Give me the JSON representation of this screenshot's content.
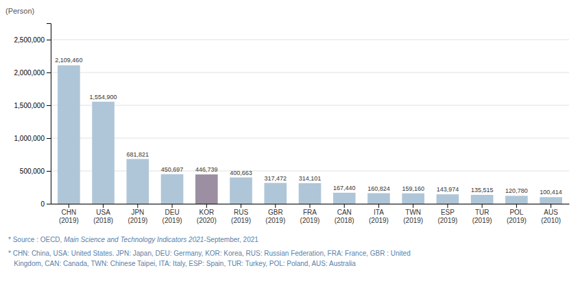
{
  "chart_data": {
    "type": "bar",
    "categories": [
      "CHN\n(2019)",
      "USA\n(2018)",
      "JPN\n(2019)",
      "DEU\n(2019)",
      "KOR\n(2020)",
      "RUS\n(2019)",
      "GBR\n(2019)",
      "FRA\n(2019)",
      "CAN\n(2018)",
      "ITA\n(2019)",
      "TWN\n(2019)",
      "ESP\n(2019)",
      "TUR\n(2019)",
      "POL\n(2019)",
      "AUS\n(2010)"
    ],
    "values": [
      2109460,
      1554900,
      681821,
      450697,
      446739,
      400663,
      317472,
      314101,
      167440,
      160824,
      159160,
      143974,
      135515,
      120780,
      100414
    ],
    "value_labels": [
      "2,109,460",
      "1,554,900",
      "681,821",
      "450,697",
      "446,739",
      "400,663",
      "317,472",
      "314,101",
      "167,440",
      "160,824",
      "159,160",
      "143,974",
      "135,515",
      "120,780",
      "100,414"
    ],
    "data_labels": true,
    "colors": [
      "#afc6d8",
      "#afc6d8",
      "#afc6d8",
      "#afc6d8",
      "#9b8fa1",
      "#afc6d8",
      "#afc6d8",
      "#afc6d8",
      "#afc6d8",
      "#afc6d8",
      "#afc6d8",
      "#afc6d8",
      "#afc6d8",
      "#afc6d8",
      "#afc6d8"
    ],
    "ylim": [
      0,
      2750000
    ],
    "yticks": [
      0,
      {
        "value": 500000,
        "label": "500,000"
      },
      {
        "value": 1000000,
        "label": "1,000,000"
      },
      {
        "value": 1500000,
        "label": "1,500,000"
      },
      {
        "value": 2000000,
        "label": "2,000,000"
      },
      {
        "value": 2500000,
        "label": "2,500,000"
      }
    ],
    "ylabel": "(Person)",
    "grid": true,
    "annotations": [
      "* Source : OECD, ",
      "Main Science and Technology Indicators 2021",
      "-September, 2021",
      "* CHN: China, USA: United States. JPN: Japan, DEU: Germany, KOR: Korea, RUS: Russian Federation, FRA: France, GBR : United",
      "   Kingdom, CAN: Canada, TWN: Chinese Taipei, ITA: Italy, ESP: Spain, TUR: Turkey, POL: Poland, AUS: Australia"
    ]
  }
}
